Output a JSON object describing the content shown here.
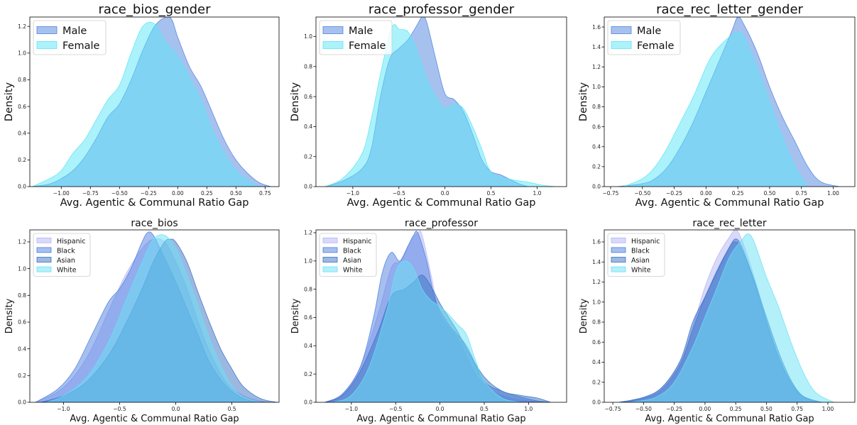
{
  "colors": {
    "Male": "#4f83e0",
    "Female": "#59e6f7",
    "Hispanic": "#b4b4f5",
    "Black": "#4d7fe0",
    "Asian": "#3a72c4",
    "White": "#67e2f5"
  },
  "chart_data": [
    {
      "type": "area",
      "title": "race_bios_gender",
      "xlabel": "Avg. Agentic & Communal Ratio Gap",
      "ylabel": "Density",
      "xlim": [
        -1.27,
        0.87
      ],
      "ylim": [
        0,
        1.27
      ],
      "xticks": [
        -1.0,
        -0.75,
        -0.5,
        -0.25,
        0.0,
        0.25,
        0.5,
        0.75
      ],
      "xticklabels": [
        "−1.00",
        "−0.75",
        "−0.50",
        "−0.25",
        "0.00",
        "0.25",
        "0.50",
        "0.75"
      ],
      "yticks": [
        0.0,
        0.2,
        0.4,
        0.6,
        0.8,
        1.0,
        1.2
      ],
      "yticklabels": [
        "0.0",
        "0.2",
        "0.4",
        "0.6",
        "0.8",
        "1.0",
        "1.2"
      ],
      "legend": "upper-left",
      "legend_size": "large",
      "series": [
        {
          "name": "Male",
          "x": [
            -1.25,
            -1.1,
            -1.0,
            -0.9,
            -0.8,
            -0.7,
            -0.6,
            -0.5,
            -0.4,
            -0.3,
            -0.2,
            -0.1,
            -0.05,
            0.0,
            0.1,
            0.2,
            0.3,
            0.4,
            0.5,
            0.6,
            0.7,
            0.8
          ],
          "y": [
            0.0,
            0.02,
            0.06,
            0.12,
            0.22,
            0.36,
            0.52,
            0.62,
            0.8,
            1.02,
            1.2,
            1.27,
            1.25,
            1.12,
            0.9,
            0.75,
            0.55,
            0.35,
            0.2,
            0.1,
            0.03,
            0.0
          ]
        },
        {
          "name": "Female",
          "x": [
            -1.25,
            -1.1,
            -1.0,
            -0.9,
            -0.8,
            -0.7,
            -0.6,
            -0.5,
            -0.4,
            -0.3,
            -0.2,
            -0.1,
            0.0,
            0.1,
            0.2,
            0.3,
            0.4,
            0.5,
            0.6,
            0.7
          ],
          "y": [
            0.0,
            0.06,
            0.12,
            0.25,
            0.35,
            0.5,
            0.65,
            0.76,
            1.0,
            1.2,
            1.22,
            1.08,
            0.98,
            0.82,
            0.65,
            0.42,
            0.25,
            0.12,
            0.05,
            0.0
          ]
        }
      ]
    },
    {
      "type": "area",
      "title": "race_professor_gender",
      "xlabel": "Avg. Agentic & Communal Ratio Gap",
      "ylabel": "Density",
      "xlim": [
        -1.4,
        1.32
      ],
      "ylim": [
        0,
        1.13
      ],
      "xticks": [
        -1.0,
        -0.5,
        0.0,
        0.5,
        1.0
      ],
      "xticklabels": [
        "−1.0",
        "−0.5",
        "0.0",
        "0.5",
        "1.0"
      ],
      "yticks": [
        0.0,
        0.2,
        0.4,
        0.6,
        0.8,
        1.0
      ],
      "yticklabels": [
        "0.0",
        "0.2",
        "0.4",
        "0.6",
        "0.8",
        "1.0"
      ],
      "legend": "upper-left",
      "legend_size": "large",
      "series": [
        {
          "name": "Male",
          "x": [
            -1.3,
            -1.1,
            -0.9,
            -0.8,
            -0.7,
            -0.6,
            -0.5,
            -0.4,
            -0.3,
            -0.25,
            -0.2,
            -0.1,
            0.0,
            0.1,
            0.2,
            0.3,
            0.4,
            0.5,
            0.6,
            0.7,
            0.8,
            0.9
          ],
          "y": [
            0.0,
            0.04,
            0.12,
            0.25,
            0.6,
            0.85,
            0.92,
            0.98,
            1.08,
            1.13,
            1.1,
            0.85,
            0.62,
            0.58,
            0.5,
            0.35,
            0.18,
            0.1,
            0.08,
            0.05,
            0.02,
            0.0
          ]
        },
        {
          "name": "Female",
          "x": [
            -1.3,
            -1.1,
            -0.9,
            -0.8,
            -0.7,
            -0.6,
            -0.55,
            -0.5,
            -0.4,
            -0.3,
            -0.2,
            -0.1,
            0.0,
            0.1,
            0.2,
            0.3,
            0.4,
            0.5,
            0.7,
            0.9,
            1.05,
            1.2
          ],
          "y": [
            0.0,
            0.06,
            0.22,
            0.45,
            0.75,
            1.02,
            1.08,
            1.05,
            1.03,
            0.9,
            0.72,
            0.6,
            0.52,
            0.55,
            0.52,
            0.4,
            0.25,
            0.1,
            0.05,
            0.03,
            0.01,
            0.0
          ]
        }
      ]
    },
    {
      "type": "area",
      "title": "race_rec_letter_gender",
      "xlabel": "Avg. Agentic & Communal Ratio Gap",
      "ylabel": "Density",
      "xlim": [
        -0.8,
        1.17
      ],
      "ylim": [
        0,
        1.7
      ],
      "xticks": [
        -0.75,
        -0.5,
        -0.25,
        0.0,
        0.25,
        0.5,
        0.75,
        1.0
      ],
      "xticklabels": [
        "−0.75",
        "−0.50",
        "−0.25",
        "0.00",
        "0.25",
        "0.50",
        "0.75",
        "1.00"
      ],
      "yticks": [
        0.0,
        0.2,
        0.4,
        0.6,
        0.8,
        1.0,
        1.2,
        1.4,
        1.6
      ],
      "yticklabels": [
        "0.0",
        "0.2",
        "0.4",
        "0.6",
        "0.8",
        "1.0",
        "1.2",
        "1.4",
        "1.6"
      ],
      "legend": "upper-left",
      "legend_size": "large",
      "series": [
        {
          "name": "Male",
          "x": [
            -0.7,
            -0.5,
            -0.4,
            -0.3,
            -0.2,
            -0.1,
            0.0,
            0.1,
            0.2,
            0.25,
            0.3,
            0.4,
            0.5,
            0.6,
            0.7,
            0.8,
            0.9,
            1.05
          ],
          "y": [
            0.0,
            0.03,
            0.08,
            0.2,
            0.4,
            0.65,
            0.95,
            1.25,
            1.55,
            1.7,
            1.62,
            1.35,
            1.0,
            0.7,
            0.45,
            0.2,
            0.05,
            0.0
          ]
        },
        {
          "name": "Female",
          "x": [
            -0.65,
            -0.5,
            -0.4,
            -0.3,
            -0.2,
            -0.1,
            0.0,
            0.05,
            0.1,
            0.2,
            0.25,
            0.3,
            0.4,
            0.5,
            0.6,
            0.7,
            0.8
          ],
          "y": [
            0.0,
            0.08,
            0.2,
            0.4,
            0.65,
            0.9,
            1.2,
            1.32,
            1.4,
            1.52,
            1.55,
            1.5,
            1.2,
            0.85,
            0.5,
            0.2,
            0.0
          ]
        }
      ]
    },
    {
      "type": "area",
      "title": "race_bios",
      "xlabel": "Avg. Agentic & Communal Ratio Gap",
      "ylabel": "Density",
      "xlim": [
        -1.3,
        0.92
      ],
      "ylim": [
        0,
        1.29
      ],
      "xticks": [
        -1.0,
        -0.5,
        0.0,
        0.5
      ],
      "xticklabels": [
        "−1.0",
        "−0.5",
        "0.0",
        "0.5"
      ],
      "yticks": [
        0.0,
        0.2,
        0.4,
        0.6,
        0.8,
        1.0,
        1.2
      ],
      "yticklabels": [
        "0.0",
        "0.2",
        "0.4",
        "0.6",
        "0.8",
        "1.0",
        "1.2"
      ],
      "legend": "upper-left",
      "legend_size": "small",
      "series": [
        {
          "name": "Hispanic",
          "x": [
            -1.25,
            -1.05,
            -0.9,
            -0.75,
            -0.6,
            -0.45,
            -0.3,
            -0.2,
            -0.1,
            0.0,
            0.1,
            0.2,
            0.3,
            0.45,
            0.6,
            0.75,
            0.85
          ],
          "y": [
            0.0,
            0.08,
            0.2,
            0.4,
            0.68,
            0.95,
            1.15,
            1.22,
            1.2,
            1.05,
            0.85,
            0.6,
            0.38,
            0.15,
            0.05,
            0.01,
            0.0
          ]
        },
        {
          "name": "Black",
          "x": [
            -1.25,
            -1.05,
            -0.9,
            -0.75,
            -0.6,
            -0.5,
            -0.4,
            -0.3,
            -0.25,
            -0.2,
            -0.1,
            0.0,
            0.1,
            0.2,
            0.3,
            0.45,
            0.6,
            0.75
          ],
          "y": [
            0.0,
            0.1,
            0.25,
            0.5,
            0.75,
            0.85,
            1.0,
            1.2,
            1.27,
            1.25,
            1.08,
            0.9,
            0.7,
            0.5,
            0.3,
            0.12,
            0.03,
            0.0
          ]
        },
        {
          "name": "Asian",
          "x": [
            -1.2,
            -1.0,
            -0.8,
            -0.6,
            -0.45,
            -0.3,
            -0.2,
            -0.1,
            -0.05,
            0.0,
            0.1,
            0.2,
            0.3,
            0.4,
            0.5,
            0.6,
            0.75,
            0.9
          ],
          "y": [
            0.0,
            0.05,
            0.15,
            0.35,
            0.58,
            0.85,
            1.05,
            1.2,
            1.22,
            1.2,
            1.05,
            0.82,
            0.6,
            0.4,
            0.25,
            0.12,
            0.03,
            0.0
          ]
        },
        {
          "name": "White",
          "x": [
            -1.15,
            -1.0,
            -0.8,
            -0.6,
            -0.45,
            -0.3,
            -0.2,
            -0.1,
            0.0,
            0.1,
            0.2,
            0.3,
            0.4,
            0.5,
            0.6,
            0.75
          ],
          "y": [
            0.0,
            0.05,
            0.18,
            0.45,
            0.75,
            1.05,
            1.22,
            1.25,
            1.15,
            0.95,
            0.72,
            0.48,
            0.28,
            0.12,
            0.04,
            0.0
          ]
        }
      ]
    },
    {
      "type": "area",
      "title": "race_professor",
      "xlabel": "Avg. Agentic & Communal Ratio Gap",
      "ylabel": "Density",
      "xlim": [
        -1.4,
        1.43
      ],
      "ylim": [
        0,
        1.22
      ],
      "xticks": [
        -1.0,
        -0.5,
        0.0,
        0.5,
        1.0
      ],
      "xticklabels": [
        "−1.0",
        "−0.5",
        "0.0",
        "0.5",
        "1.0"
      ],
      "yticks": [
        0.0,
        0.2,
        0.4,
        0.6,
        0.8,
        1.0,
        1.2
      ],
      "yticklabels": [
        "0.0",
        "0.2",
        "0.4",
        "0.6",
        "0.8",
        "1.0",
        "1.2"
      ],
      "legend": "upper-left",
      "legend_size": "small",
      "series": [
        {
          "name": "Hispanic",
          "x": [
            -1.3,
            -1.1,
            -0.9,
            -0.7,
            -0.55,
            -0.45,
            -0.35,
            -0.25,
            -0.2,
            -0.1,
            0.0,
            0.2,
            0.4,
            0.6,
            0.8,
            1.0,
            1.2
          ],
          "y": [
            0.0,
            0.06,
            0.25,
            0.62,
            0.95,
            1.0,
            1.12,
            1.2,
            1.18,
            0.9,
            0.62,
            0.45,
            0.2,
            0.08,
            0.03,
            0.01,
            0.0
          ]
        },
        {
          "name": "Black",
          "x": [
            -1.3,
            -1.1,
            -0.9,
            -0.75,
            -0.65,
            -0.55,
            -0.45,
            -0.35,
            -0.3,
            -0.25,
            -0.15,
            -0.05,
            0.1,
            0.3,
            0.5,
            0.7,
            0.9,
            1.1,
            1.25
          ],
          "y": [
            0.0,
            0.06,
            0.25,
            0.6,
            0.92,
            1.06,
            1.0,
            1.12,
            1.18,
            1.2,
            1.0,
            0.72,
            0.55,
            0.4,
            0.15,
            0.08,
            0.04,
            0.01,
            0.0
          ]
        },
        {
          "name": "Asian",
          "x": [
            -1.3,
            -1.1,
            -0.9,
            -0.7,
            -0.55,
            -0.4,
            -0.3,
            -0.2,
            -0.1,
            0.0,
            0.1,
            0.2,
            0.3,
            0.5,
            0.7,
            0.9,
            1.1,
            1.25
          ],
          "y": [
            0.0,
            0.05,
            0.22,
            0.5,
            0.75,
            0.8,
            0.85,
            0.9,
            0.82,
            0.7,
            0.6,
            0.5,
            0.38,
            0.18,
            0.08,
            0.05,
            0.03,
            0.0
          ]
        },
        {
          "name": "White",
          "x": [
            -1.2,
            -1.0,
            -0.8,
            -0.6,
            -0.5,
            -0.4,
            -0.3,
            -0.2,
            -0.1,
            0.0,
            0.1,
            0.2,
            0.3,
            0.4,
            0.5,
            0.7,
            0.9
          ],
          "y": [
            0.0,
            0.05,
            0.25,
            0.65,
            0.92,
            1.0,
            0.95,
            0.8,
            0.72,
            0.68,
            0.62,
            0.55,
            0.48,
            0.3,
            0.15,
            0.03,
            0.0
          ]
        }
      ]
    },
    {
      "type": "area",
      "title": "race_rec_letter",
      "xlabel": "Avg. Agentic & Communal Ratio Gap",
      "ylabel": "Density",
      "xlim": [
        -0.82,
        1.22
      ],
      "ylim": [
        0,
        1.72
      ],
      "xticks": [
        -0.75,
        -0.5,
        -0.25,
        0.0,
        0.25,
        0.5,
        0.75,
        1.0
      ],
      "xticklabels": [
        "−0.75",
        "−0.50",
        "−0.25",
        "0.00",
        "0.25",
        "0.50",
        "0.75",
        "1.00"
      ],
      "yticks": [
        0.0,
        0.2,
        0.4,
        0.6,
        0.8,
        1.0,
        1.2,
        1.4,
        1.6
      ],
      "yticklabels": [
        "0.0",
        "0.2",
        "0.4",
        "0.6",
        "0.8",
        "1.0",
        "1.2",
        "1.4",
        "1.6"
      ],
      "legend": "upper-left",
      "legend_size": "small",
      "series": [
        {
          "name": "Hispanic",
          "x": [
            -0.7,
            -0.5,
            -0.35,
            -0.2,
            -0.1,
            0.0,
            0.1,
            0.2,
            0.25,
            0.3,
            0.4,
            0.5,
            0.6,
            0.7,
            0.8,
            0.95
          ],
          "y": [
            0.0,
            0.05,
            0.15,
            0.4,
            0.75,
            1.15,
            1.45,
            1.65,
            1.72,
            1.62,
            1.25,
            0.82,
            0.45,
            0.18,
            0.05,
            0.0
          ]
        },
        {
          "name": "Black",
          "x": [
            -0.7,
            -0.5,
            -0.35,
            -0.2,
            -0.1,
            0.0,
            0.1,
            0.2,
            0.25,
            0.3,
            0.4,
            0.5,
            0.6,
            0.7,
            0.8,
            0.95
          ],
          "y": [
            0.0,
            0.04,
            0.13,
            0.38,
            0.72,
            1.05,
            1.3,
            1.55,
            1.6,
            1.52,
            1.2,
            0.8,
            0.45,
            0.2,
            0.06,
            0.0
          ]
        },
        {
          "name": "Asian",
          "x": [
            -0.7,
            -0.5,
            -0.35,
            -0.2,
            -0.1,
            0.0,
            0.1,
            0.2,
            0.25,
            0.3,
            0.4,
            0.5,
            0.6,
            0.7,
            0.8,
            0.95
          ],
          "y": [
            0.0,
            0.05,
            0.15,
            0.42,
            0.8,
            1.05,
            1.32,
            1.55,
            1.63,
            1.55,
            1.22,
            0.85,
            0.5,
            0.22,
            0.06,
            0.0
          ]
        },
        {
          "name": "White",
          "x": [
            -0.6,
            -0.4,
            -0.25,
            -0.1,
            0.0,
            0.1,
            0.2,
            0.3,
            0.35,
            0.4,
            0.5,
            0.6,
            0.7,
            0.8,
            0.9,
            1.05
          ],
          "y": [
            0.0,
            0.05,
            0.2,
            0.55,
            0.85,
            1.15,
            1.45,
            1.62,
            1.68,
            1.6,
            1.25,
            0.95,
            0.6,
            0.3,
            0.1,
            0.0
          ]
        }
      ]
    }
  ]
}
